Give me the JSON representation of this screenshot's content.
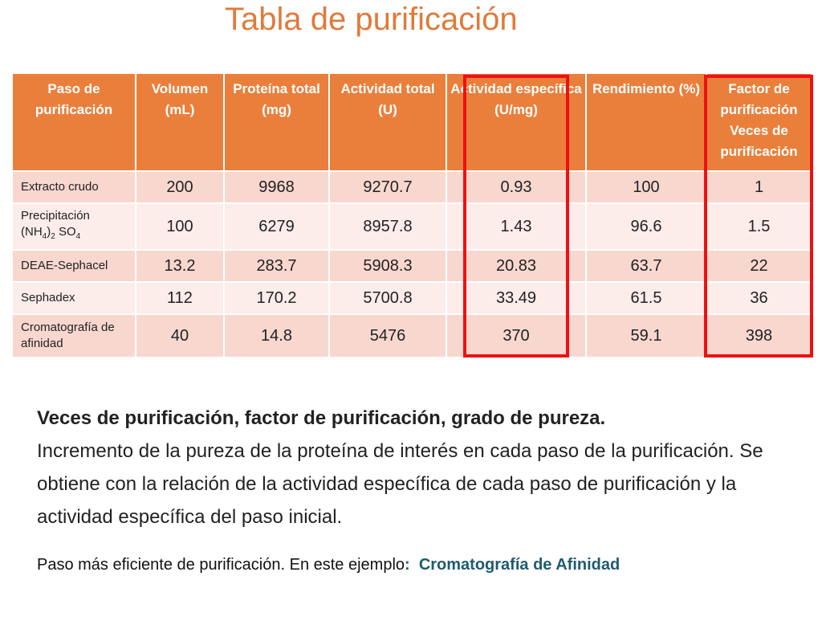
{
  "title": "Tabla de purificación",
  "table": {
    "headers": [
      "Paso de purificación",
      "Volumen (mL)",
      "Proteína total (mg)",
      "Actividad total (U)",
      "Actividad específica (U/mg)",
      "Rendimiento (%)",
      "Factor de purificación Veces de purificación"
    ],
    "rows": [
      {
        "step": "Extracto crudo",
        "volumen": "200",
        "proteina": "9968",
        "actividad": "9270.7",
        "especifica": "0.93",
        "rendimiento": "100",
        "factor": "1"
      },
      {
        "step_main": "Precipitación",
        "step_nh": "(NH",
        "step_sub1": "4",
        "step_close": ")",
        "step_sub2": "2",
        "step_so": " SO",
        "step_sub3": "4",
        "volumen": "100",
        "proteina": "6279",
        "actividad": "8957.8",
        "especifica": "1.43",
        "rendimiento": "96.6",
        "factor": "1.5"
      },
      {
        "step": "DEAE-Sephacel",
        "volumen": "13.2",
        "proteina": "283.7",
        "actividad": "5908.3",
        "especifica": "20.83",
        "rendimiento": "63.7",
        "factor": "22"
      },
      {
        "step": "Sephadex",
        "volumen": "112",
        "proteina": "170.2",
        "actividad": "5700.8",
        "especifica": "33.49",
        "rendimiento": "61.5",
        "factor": "36"
      },
      {
        "step": "Cromatografía de afinidad",
        "volumen": "40",
        "proteina": "14.8",
        "actividad": "5476",
        "especifica": "370",
        "rendimiento": "59.1",
        "factor": "398"
      }
    ]
  },
  "paragraph": {
    "lead": "Veces de purificación, factor de purificación, grado de pureza.",
    "body": "Incremento de la pureza de la proteína de interés en cada paso de la purificación. Se obtiene con la relación de la actividad específica de cada paso de purificación y la actividad específica del paso inicial."
  },
  "footer": {
    "text": "Paso más eficiente de purificación. En este ejemplo",
    "colon": ":",
    "highlight": "Cromatografía de Afinidad"
  },
  "colors": {
    "header": "#ea7f3c",
    "title": "#e07a3a",
    "highlight_box": "#ee1111",
    "accent": "#1f5b6e"
  }
}
